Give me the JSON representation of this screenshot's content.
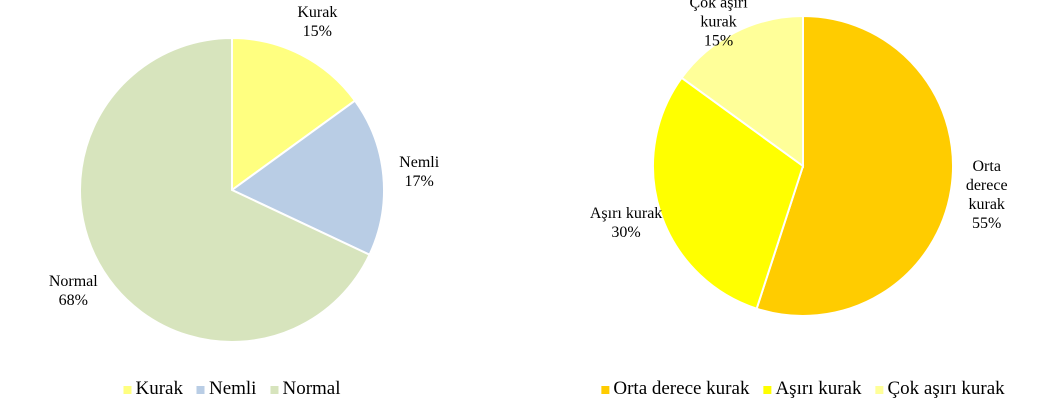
{
  "chart_data": [
    {
      "type": "pie",
      "categories": [
        "Kurak",
        "Nemli",
        "Normal"
      ],
      "values": [
        15,
        17,
        68
      ],
      "value_labels": [
        "15%",
        "17%",
        "68%"
      ],
      "colors": [
        "#ffff80",
        "#b9cde5",
        "#d7e4bd"
      ],
      "legend": "bottom"
    },
    {
      "type": "pie",
      "categories": [
        "Orta derece kurak",
        "Aşırı kurak",
        "Çok aşırı kurak"
      ],
      "values": [
        55,
        30,
        15
      ],
      "value_labels": [
        "55%",
        "30%",
        "15%"
      ],
      "colors": [
        "#ffcc00",
        "#ffff00",
        "#ffff99"
      ],
      "legend": "bottom"
    }
  ]
}
